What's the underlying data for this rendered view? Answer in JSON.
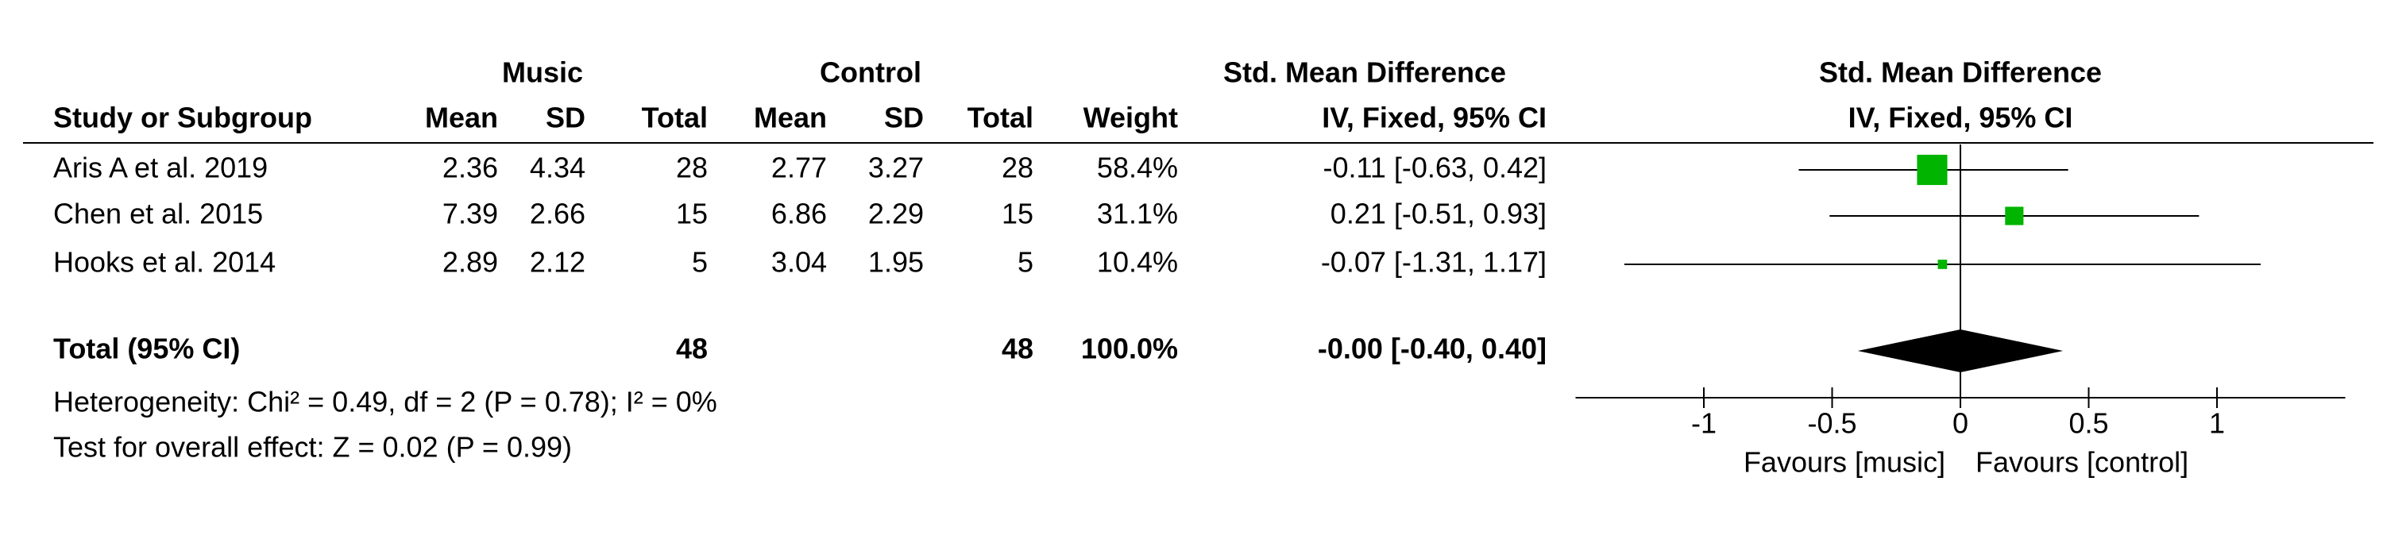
{
  "chart_data": {
    "type": "forest",
    "group_headers": {
      "music": "Music",
      "control": "Control",
      "effect_table": "Std. Mean Difference",
      "effect_plot": "Std. Mean Difference"
    },
    "column_headers": {
      "study": "Study or Subgroup",
      "music_mean": "Mean",
      "music_sd": "SD",
      "music_total": "Total",
      "control_mean": "Mean",
      "control_sd": "SD",
      "control_total": "Total",
      "weight": "Weight",
      "effect_table": "IV, Fixed, 95% CI",
      "effect_plot": "IV, Fixed, 95% CI"
    },
    "studies": [
      {
        "name": "Aris A et al. 2019",
        "music_mean": 2.36,
        "music_sd": 4.34,
        "music_total": 28,
        "control_mean": 2.77,
        "control_sd": 3.27,
        "control_total": 28,
        "weight": 58.4,
        "weight_label": "58.4%",
        "effect": -0.11,
        "ci": [
          -0.63,
          0.42
        ],
        "effect_label": "-0.11 [-0.63, 0.42]"
      },
      {
        "name": "Chen et al. 2015",
        "music_mean": 7.39,
        "music_sd": 2.66,
        "music_total": 15,
        "control_mean": 6.86,
        "control_sd": 2.29,
        "control_total": 15,
        "weight": 31.1,
        "weight_label": "31.1%",
        "effect": 0.21,
        "ci": [
          -0.51,
          0.93
        ],
        "effect_label": "0.21 [-0.51, 0.93]"
      },
      {
        "name": "Hooks et al. 2014",
        "music_mean": 2.89,
        "music_sd": 2.12,
        "music_total": 5,
        "control_mean": 3.04,
        "control_sd": 1.95,
        "control_total": 5,
        "weight": 10.4,
        "weight_label": "10.4%",
        "effect": -0.07,
        "ci": [
          -1.31,
          1.17
        ],
        "effect_label": "-0.07 [-1.31, 1.17]"
      }
    ],
    "total": {
      "name": "Total (95% CI)",
      "music_total": 48,
      "control_total": 48,
      "weight_label": "100.0%",
      "effect": 0,
      "ci": [
        -0.4,
        0.4
      ],
      "effect_label": "-0.00 [-0.40, 0.40]"
    },
    "heterogeneity": "Heterogeneity: Chi² = 0.49, df = 2 (P = 0.78); I² = 0%",
    "overall_effect": "Test for overall effect: Z = 0.02 (P = 0.99)",
    "xlim": [
      -1.5,
      1.5
    ],
    "xticks": [
      -1,
      -0.5,
      0,
      0.5,
      1
    ],
    "x_labels": {
      "left": "Favours [music]",
      "right": "Favours [control]"
    },
    "marker_color": "#00b400",
    "diamond_color": "#000000"
  }
}
